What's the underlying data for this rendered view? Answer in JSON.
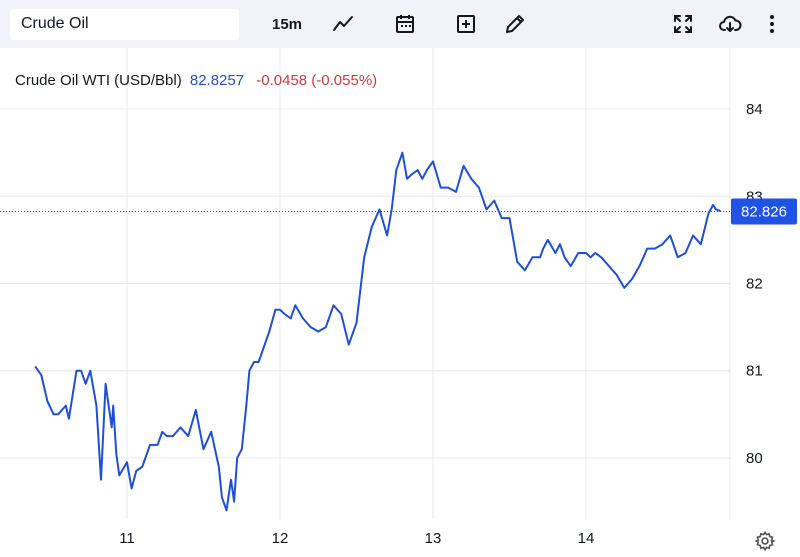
{
  "toolbar": {
    "symbol": "Crude Oil",
    "interval": "15m",
    "icons": [
      "line-chart-icon",
      "calendar-icon",
      "add-box-icon",
      "pencil-icon",
      "fullscreen-icon",
      "cloud-download-icon",
      "more-vertical-icon",
      "gear-icon"
    ]
  },
  "legend": {
    "name": "Crude Oil WTI (USD/Bbl)",
    "price": "82.8257",
    "change": "-0.0458 (-0.055%)"
  },
  "colors": {
    "line": "#1e4fd6",
    "price_tag": "#1e53e5",
    "change": "#d0393c",
    "grid": "#e6e8ee",
    "toolbar_bg": "#f0f3fa"
  },
  "chart_data": {
    "type": "line",
    "x_ticks": [
      "11",
      "12",
      "13",
      "14"
    ],
    "ylim": [
      79.3,
      84.7
    ],
    "y_ticks": [
      80,
      81,
      82,
      83,
      84
    ],
    "last_price_label": "82.826",
    "last_price": 82.826,
    "grid": true,
    "series": [
      {
        "x": [
          10.4,
          10.44,
          10.48,
          10.52,
          10.55,
          10.6,
          10.62,
          10.67,
          10.7,
          10.73,
          10.76,
          10.8,
          10.83,
          10.86,
          10.9,
          10.91,
          10.93,
          10.95,
          11.0,
          11.03,
          11.06,
          11.1,
          11.15,
          11.2,
          11.23,
          11.26,
          11.3,
          11.35,
          11.4,
          11.45,
          11.5,
          11.55,
          11.6,
          11.62,
          11.65,
          11.68,
          11.7,
          11.72,
          11.75,
          11.78,
          11.8,
          11.83,
          11.86,
          11.9,
          11.93,
          11.97,
          12.0,
          12.03,
          12.07,
          12.1,
          12.15,
          12.2,
          12.25,
          12.3,
          12.35,
          12.4,
          12.45,
          12.5,
          12.55,
          12.6,
          12.65,
          12.7,
          12.73,
          12.76,
          12.8,
          12.83,
          12.86,
          12.9,
          12.93,
          12.96,
          13.0,
          13.05,
          13.1,
          13.15,
          13.2,
          13.25,
          13.3,
          13.35,
          13.4,
          13.45,
          13.5,
          13.55,
          13.6,
          13.65,
          13.7,
          13.72,
          13.75,
          13.8,
          13.83,
          13.86,
          13.9,
          13.95,
          14.0,
          14.03,
          14.06,
          14.1,
          14.15,
          14.2,
          14.25,
          14.3,
          14.35,
          14.4,
          14.45,
          14.5,
          14.55,
          14.6,
          14.65,
          14.7,
          14.75,
          14.8,
          14.83,
          14.85,
          14.88
        ],
        "y": [
          81.05,
          80.95,
          80.65,
          80.5,
          80.5,
          80.6,
          80.45,
          81.0,
          81.0,
          80.85,
          81.0,
          80.6,
          79.75,
          80.85,
          80.35,
          80.6,
          80.05,
          79.8,
          79.95,
          79.65,
          79.85,
          79.9,
          80.15,
          80.15,
          80.3,
          80.25,
          80.25,
          80.35,
          80.25,
          80.55,
          80.1,
          80.3,
          79.9,
          79.55,
          79.4,
          79.75,
          79.5,
          80.0,
          80.1,
          80.6,
          81.0,
          81.1,
          81.1,
          81.3,
          81.45,
          81.7,
          81.7,
          81.65,
          81.6,
          81.75,
          81.6,
          81.5,
          81.45,
          81.5,
          81.75,
          81.65,
          81.3,
          81.55,
          82.3,
          82.65,
          82.85,
          82.55,
          82.85,
          83.3,
          83.5,
          83.2,
          83.25,
          83.3,
          83.2,
          83.3,
          83.4,
          83.1,
          83.1,
          83.05,
          83.35,
          83.2,
          83.1,
          82.85,
          82.95,
          82.75,
          82.75,
          82.25,
          82.15,
          82.3,
          82.3,
          82.4,
          82.5,
          82.35,
          82.45,
          82.3,
          82.2,
          82.35,
          82.35,
          82.3,
          82.35,
          82.3,
          82.2,
          82.1,
          81.95,
          82.05,
          82.2,
          82.4,
          82.4,
          82.45,
          82.55,
          82.3,
          82.35,
          82.55,
          82.45,
          82.8,
          82.9,
          82.85,
          82.83
        ]
      }
    ]
  }
}
